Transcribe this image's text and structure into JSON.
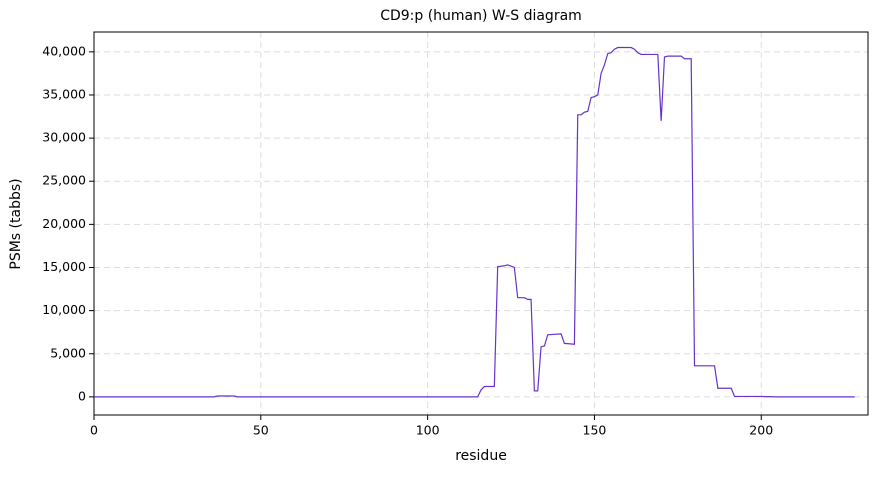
{
  "chart_data": {
    "type": "line",
    "title": "CD9:p (human) W-S diagram",
    "x_label": "residue",
    "y_label": "PSMs (tabbs)",
    "x": [
      0,
      36,
      37,
      42,
      43,
      55,
      115,
      116,
      117,
      120,
      121,
      123,
      124,
      126,
      127,
      129,
      130,
      131,
      132,
      133,
      134,
      135,
      136,
      140,
      141,
      144,
      145,
      146,
      147,
      148,
      149,
      150,
      151,
      152,
      153,
      154,
      155,
      156,
      157,
      161,
      162,
      163,
      164,
      169,
      170,
      171,
      172,
      176,
      177,
      179,
      180,
      186,
      187,
      191,
      192,
      200,
      205,
      228
    ],
    "values": [
      0,
      0,
      100,
      100,
      0,
      0,
      0,
      800,
      1200,
      1200,
      15100,
      15200,
      15300,
      15000,
      11500,
      11500,
      11300,
      11300,
      700,
      700,
      5800,
      5900,
      7200,
      7300,
      6200,
      6100,
      32700,
      32700,
      33000,
      33100,
      34700,
      34800,
      35000,
      37500,
      38500,
      39800,
      39900,
      40300,
      40500,
      40500,
      40300,
      39900,
      39700,
      39700,
      32000,
      39400,
      39500,
      39500,
      39200,
      39200,
      3600,
      3600,
      1000,
      1000,
      50,
      50,
      0,
      0
    ],
    "color": "#6633cc",
    "xlim": [
      0,
      232
    ],
    "ylim": [
      -2100,
      42300
    ],
    "xticks": [
      0,
      50,
      100,
      150,
      200
    ],
    "yticks": [
      0,
      {
        "value": 5000,
        "label": "5,000"
      },
      {
        "value": 10000,
        "label": "10,000"
      },
      {
        "value": 15000,
        "label": "15,000"
      },
      {
        "value": 20000,
        "label": "20,000"
      },
      {
        "value": 25000,
        "label": "25,000"
      },
      {
        "value": 30000,
        "label": "30,000"
      },
      {
        "value": 35000,
        "label": "35,000"
      },
      {
        "value": 40000,
        "label": "40,000"
      }
    ],
    "grid": true
  }
}
